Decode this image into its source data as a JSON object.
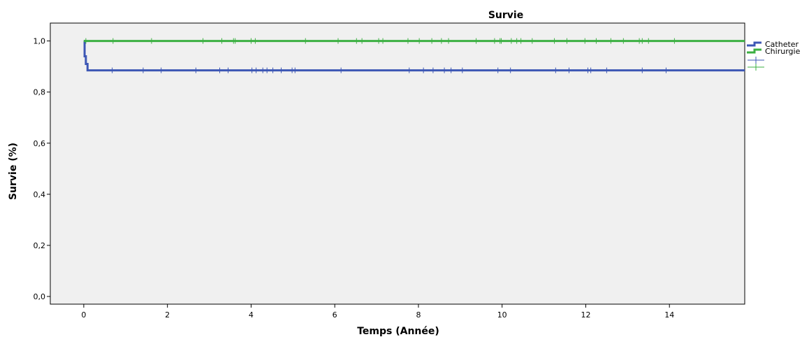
{
  "chart_data": {
    "type": "line",
    "subtype": "kaplan-meier",
    "title": "Survie",
    "xlabel": "Temps (Année)",
    "ylabel": "Survie (%)",
    "xlim": [
      -0.8,
      15.8
    ],
    "ylim": [
      -0.03,
      1.07
    ],
    "x_ticks": [
      0,
      2,
      4,
      6,
      8,
      10,
      12,
      14
    ],
    "x_tick_labels": [
      "0",
      "2",
      "4",
      "6",
      "8",
      "10",
      "12",
      "14"
    ],
    "y_ticks": [
      0.0,
      0.2,
      0.4,
      0.6,
      0.8,
      1.0
    ],
    "y_tick_labels": [
      "0,0",
      "0,2",
      "0,4",
      "0,6",
      "0,8",
      "1,0"
    ],
    "grid": false,
    "legend_position": "right",
    "series": [
      {
        "name": "Catheter",
        "color": "#3d57b5",
        "steps": [
          [
            0,
            1.0
          ],
          [
            0.02,
            0.94
          ],
          [
            0.05,
            0.91
          ],
          [
            0.09,
            0.885
          ],
          [
            15.8,
            0.885
          ]
        ],
        "censored": [
          0.68,
          1.42,
          1.85,
          2.68,
          3.25,
          3.45,
          4.02,
          4.12,
          4.28,
          4.38,
          4.52,
          4.72,
          4.98,
          5.05,
          6.15,
          7.78,
          8.12,
          8.35,
          8.62,
          8.78,
          9.05,
          9.9,
          10.2,
          11.28,
          11.6,
          12.05,
          12.12,
          12.5,
          13.35,
          13.92
        ]
      },
      {
        "name": "Chirurgie",
        "color": "#3cb043",
        "steps": [
          [
            0,
            1.0
          ],
          [
            15.8,
            1.0
          ]
        ],
        "censored": [
          0.05,
          0.7,
          1.62,
          2.85,
          3.3,
          3.58,
          3.62,
          4.0,
          4.1,
          5.3,
          6.08,
          6.52,
          6.65,
          7.05,
          7.15,
          7.75,
          8.02,
          8.32,
          8.55,
          8.72,
          9.38,
          9.82,
          9.95,
          9.98,
          10.22,
          10.35,
          10.45,
          10.72,
          11.25,
          11.55,
          11.98,
          12.25,
          12.6,
          12.9,
          13.28,
          13.35,
          13.5,
          14.12
        ]
      }
    ]
  }
}
